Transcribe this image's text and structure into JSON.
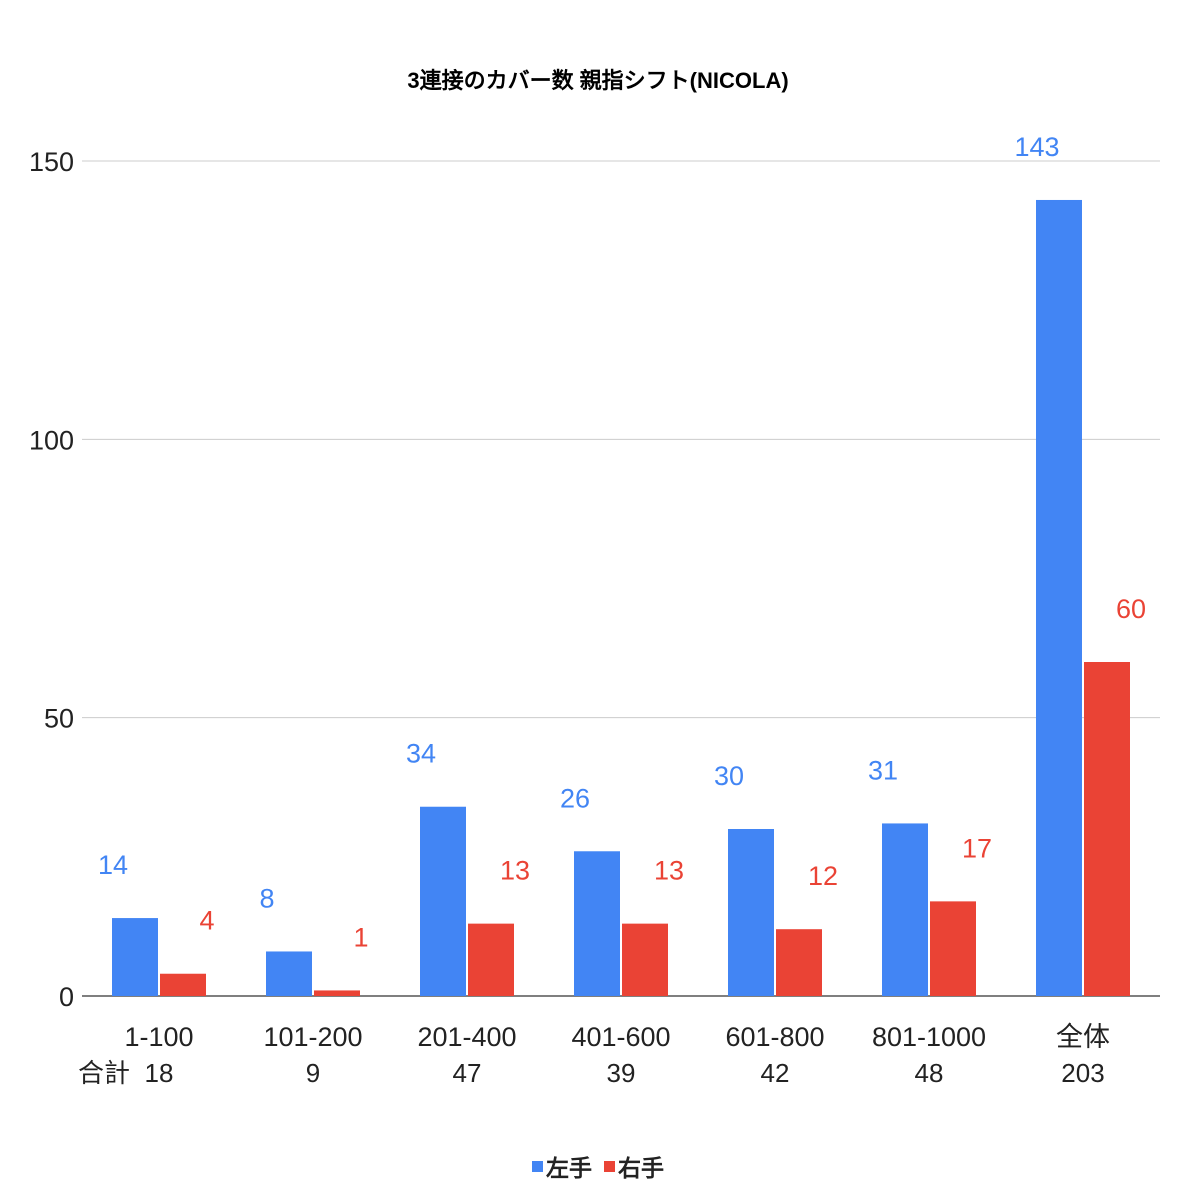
{
  "chart_data": {
    "type": "bar",
    "title": "3連接のカバー数 親指シフト(NICOLA)",
    "categories": [
      "1-100",
      "101-200",
      "201-400",
      "401-600",
      "601-800",
      "801-1000",
      "全体"
    ],
    "totals_label": "合計",
    "totals": [
      "18",
      "9",
      "47",
      "39",
      "42",
      "48",
      "203"
    ],
    "series": [
      {
        "name": "左手",
        "color": "#4285f4",
        "values": [
          14,
          8,
          34,
          26,
          30,
          31,
          143
        ]
      },
      {
        "name": "右手",
        "color": "#ea4335",
        "values": [
          4,
          1,
          13,
          13,
          12,
          17,
          60
        ]
      }
    ],
    "ylim": [
      0,
      150
    ],
    "yticks": [
      0,
      50,
      100,
      150
    ],
    "grid": true,
    "legend_position": "bottom",
    "data_labels": true
  }
}
